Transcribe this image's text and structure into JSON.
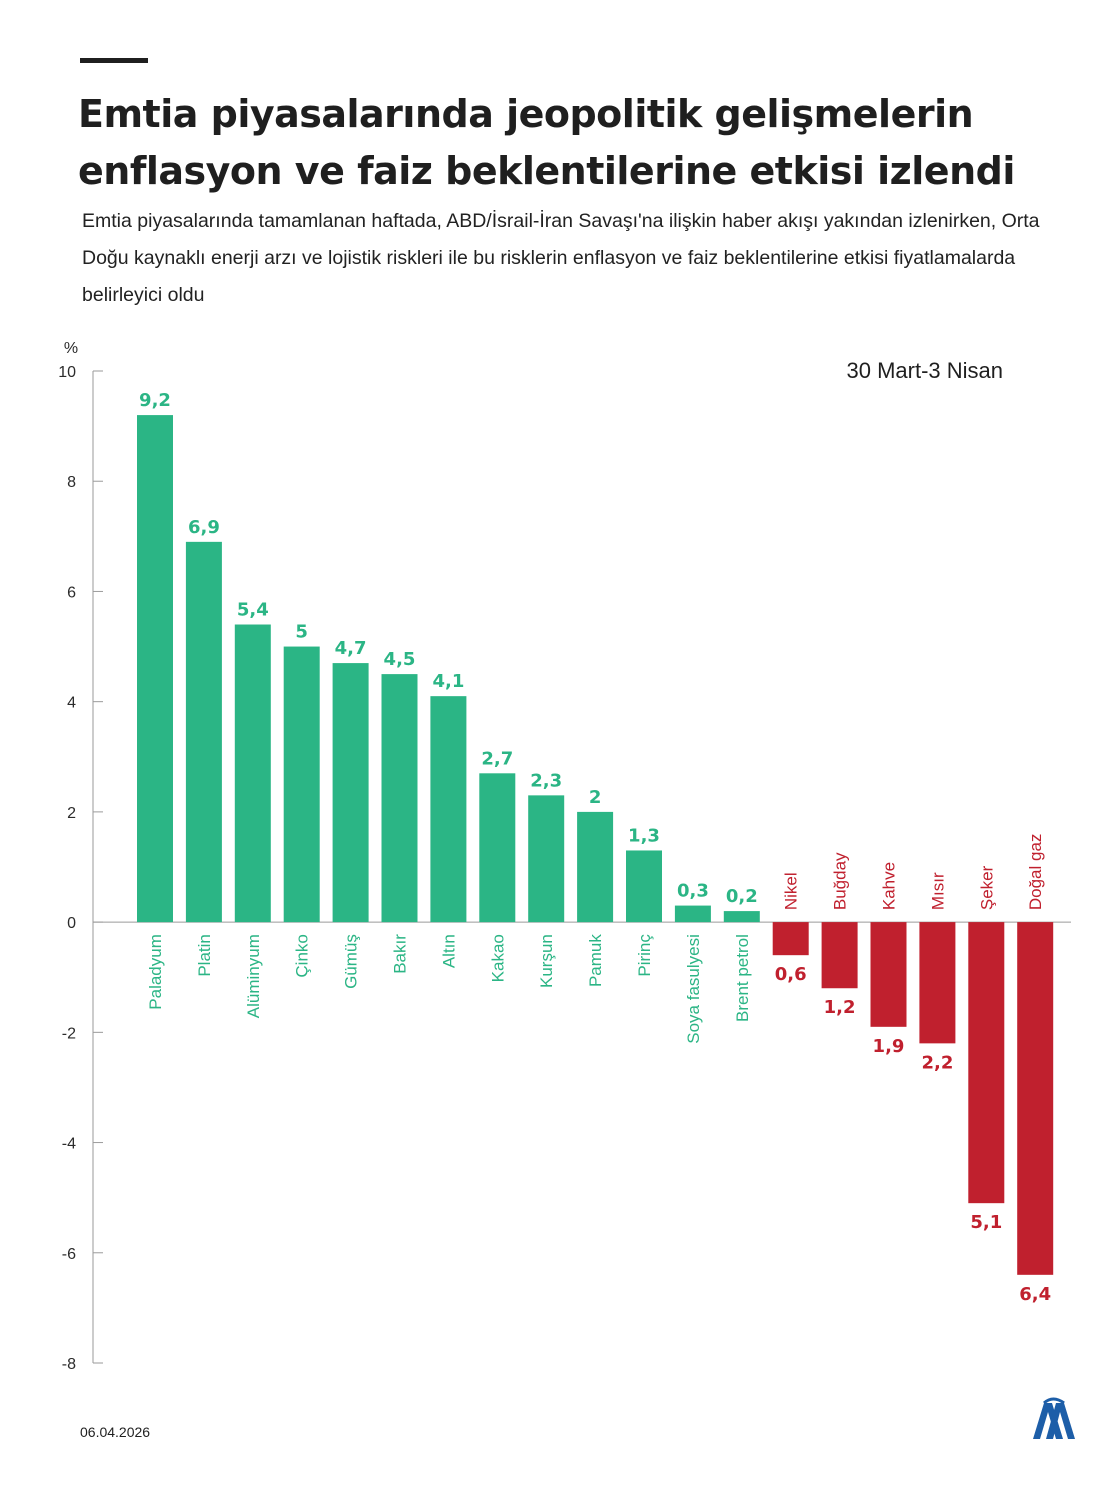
{
  "header": {
    "title": "Emtia piyasalarında jeopolitik gelişmelerin enflasyon ve faiz beklentilerine etkisi izlendi",
    "subtitle": "Emtia piyasalarında tamamlanan haftada, ABD/İsrail-İran Savaşı'na ilişkin haber akışı yakından izlenirken, Orta Doğu kaynaklı enerji arzı ve lojistik riskleri ile bu risklerin enflasyon ve faiz beklentilerine etkisi fiyatlamalarda belirleyici oldu"
  },
  "period_label": "30 Mart-3 Nisan",
  "footer": {
    "date": "06.04.2026",
    "logo_text": "AA"
  },
  "colors": {
    "positive": "#2bb585",
    "negative": "#c0202e",
    "axis": "#9a9a9a",
    "text": "#1f1f1f"
  },
  "chart_data": {
    "type": "bar",
    "title": "Emtia piyasalarında jeopolitik gelişmelerin enflasyon ve faiz beklentilerine etkisi izlendi",
    "ylabel": "%",
    "ylim": [
      -8,
      10
    ],
    "yticks": [
      10,
      8,
      6,
      4,
      2,
      0,
      -2,
      -4,
      -6,
      -8
    ],
    "ytick_labels": [
      "10",
      "8",
      "6",
      "4",
      "2",
      "0",
      "-2",
      "-4",
      "-6",
      "-8"
    ],
    "categories": [
      "Paladyum",
      "Platin",
      "Alüminyum",
      "Çinko",
      "Gümüş",
      "Bakır",
      "Altın",
      "Kakao",
      "Kurşun",
      "Pamuk",
      "Pirinç",
      "Soya fasulyesi",
      "Brent petrol",
      "Nikel",
      "Buğday",
      "Kahve",
      "Mısır",
      "Şeker",
      "Doğal gaz"
    ],
    "values": [
      9.2,
      6.9,
      5.4,
      5,
      4.7,
      4.5,
      4.1,
      2.7,
      2.3,
      2,
      1.3,
      0.3,
      0.2,
      -0.6,
      -1.2,
      -1.9,
      -2.2,
      -5.1,
      -6.4
    ],
    "value_labels": [
      "9,2",
      "6,9",
      "5,4",
      "5",
      "4,7",
      "4,5",
      "4,1",
      "2,7",
      "2,3",
      "2",
      "1,3",
      "0,3",
      "0,2",
      "0,6",
      "1,2",
      "1,9",
      "2,2",
      "5,1",
      "6,4"
    ]
  }
}
